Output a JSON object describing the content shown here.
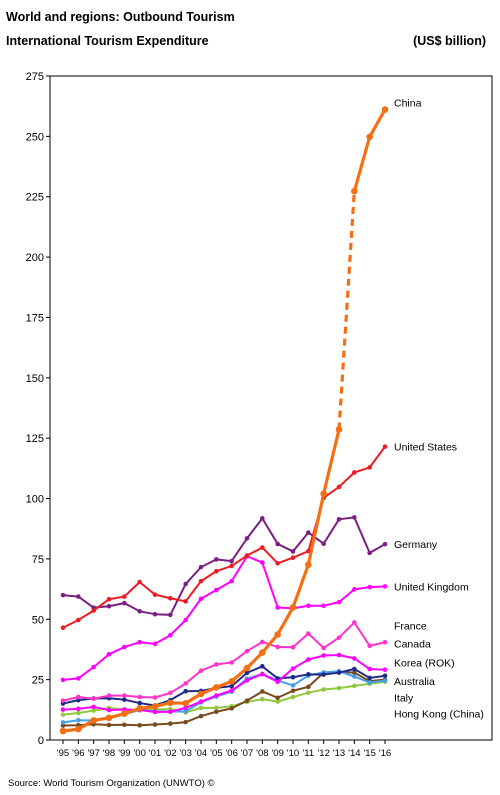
{
  "title": "World and regions: Outbound Tourism",
  "subtitle": "International Tourism Expenditure",
  "unit": "(US$ billion)",
  "source": "Source: World Tourism Organization (UNWTO) ©",
  "chart_data": {
    "type": "line",
    "x": [
      "'95",
      "'96",
      "'97",
      "'98",
      "'99",
      "'00",
      "'01",
      "'02",
      "'03",
      "'04",
      "'05",
      "'06",
      "'07",
      "'08",
      "'09",
      "'10",
      "'11",
      "'12",
      "'13",
      "'14",
      "'15",
      "'16"
    ],
    "ylim": [
      0,
      275
    ],
    "yticks": [
      0,
      25,
      50,
      75,
      100,
      125,
      150,
      175,
      200,
      225,
      250,
      275
    ],
    "grid": false,
    "series": [
      {
        "name": "China",
        "color": "#f46f14",
        "dashed_segment": [
          18,
          19
        ],
        "values": [
          3.7,
          4.5,
          8.1,
          9.2,
          10.9,
          13.1,
          13.9,
          15.4,
          15.2,
          19.1,
          21.8,
          24.3,
          29.8,
          36.2,
          43.7,
          54.9,
          72.6,
          102,
          128.6,
          227.3,
          249.8,
          261.1
        ]
      },
      {
        "name": "United States",
        "color": "#ec1c24",
        "values": [
          46.5,
          49.7,
          53.6,
          58.3,
          59.4,
          65.4,
          60.2,
          58.7,
          57.4,
          65.8,
          69.9,
          72.1,
          76.4,
          79.7,
          73.2,
          75.5,
          78.2,
          100.3,
          104.8,
          110.8,
          112.9,
          121.5
        ]
      },
      {
        "name": "Germany",
        "color": "#7b1f83",
        "values": [
          60,
          59.4,
          54.8,
          55.4,
          56.7,
          53.3,
          52.1,
          51.8,
          64.6,
          71.6,
          74.8,
          74.1,
          83.5,
          91.8,
          81.2,
          78.1,
          85.9,
          81.3,
          91.4,
          92.2,
          77.5,
          81.1
        ]
      },
      {
        "name": "United Kingdom",
        "color": "#ff00ff",
        "values": [
          24.9,
          25.5,
          30.2,
          35.5,
          38.5,
          40.5,
          39.8,
          43.4,
          49.7,
          58.5,
          62.1,
          65.8,
          76.1,
          73.5,
          54.9,
          54.5,
          55.6,
          55.6,
          57.1,
          62.4,
          63.3,
          63.6
        ]
      },
      {
        "name": "France",
        "color": "#ff33cc",
        "values": [
          16.3,
          17.8,
          17.1,
          18.4,
          18.4,
          17.8,
          17.6,
          19.5,
          23.4,
          28.7,
          31.3,
          32.1,
          36.8,
          40.6,
          38.5,
          38.4,
          44.1,
          38.1,
          42.4,
          48.7,
          39,
          40.5
        ]
      },
      {
        "name": "Canada",
        "color": "#ff00ff",
        "values": [
          12.6,
          12.9,
          13.7,
          12.4,
          12.6,
          12.4,
          11.6,
          11.7,
          13.3,
          15.9,
          18.4,
          20.5,
          24.7,
          27.3,
          24.1,
          29.6,
          33.3,
          35,
          35.2,
          33.8,
          29.4,
          29.1
        ]
      },
      {
        "name": "Korea (ROK)",
        "color": "#1f2a87",
        "values": [
          15.1,
          16.5,
          17.2,
          17.3,
          16.7,
          15.3,
          14.3,
          16.5,
          20.2,
          20.3,
          21.6,
          22.3,
          27.8,
          30.5,
          25.5,
          26,
          27.2,
          27.1,
          27.9,
          29.4,
          25.7,
          26.6
        ]
      },
      {
        "name": "Australia",
        "color": "#46a0e6",
        "values": [
          7.3,
          8.2,
          8.1,
          9.3,
          10.7,
          12.4,
          11.9,
          11.7,
          11.9,
          15.6,
          18,
          20,
          25.4,
          27.3,
          24.6,
          22.6,
          26.7,
          28,
          28.5,
          26.3,
          23.8,
          24.6
        ]
      },
      {
        "name": "Italy",
        "color": "#7a4a1e",
        "values": [
          6,
          6.1,
          6.5,
          6.2,
          6.3,
          6.1,
          6.4,
          6.8,
          7.4,
          9.9,
          11.7,
          13.1,
          16.3,
          20.1,
          17.5,
          20.4,
          22,
          27.9,
          28.2,
          27.9,
          24.4,
          25
        ]
      },
      {
        "name": "Hong Kong (China)",
        "color": "#92c83e",
        "values": [
          10.5,
          11.2,
          12.2,
          13.2,
          12.7,
          12.3,
          12.7,
          12.8,
          11.4,
          13.3,
          13.3,
          14,
          15.8,
          16.9,
          15.9,
          17.8,
          19.6,
          20.9,
          21.5,
          22.4,
          23.3,
          24.1
        ]
      }
    ]
  }
}
